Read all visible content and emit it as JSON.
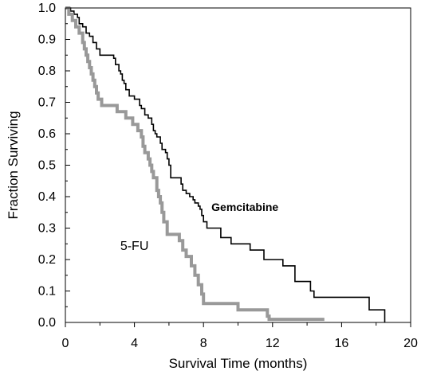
{
  "chart_data": {
    "type": "line",
    "subtype": "kaplan-meier-step",
    "xlabel": "Survival Time (months)",
    "ylabel": "Fraction Surviving",
    "xlim": [
      0,
      20
    ],
    "ylim": [
      0,
      1.0
    ],
    "x_ticks": [
      0,
      4,
      8,
      12,
      16,
      20
    ],
    "x_tick_labels": [
      "0",
      "4",
      "8",
      "12",
      "16",
      "20"
    ],
    "y_ticks": [
      0,
      0.1,
      0.2,
      0.3,
      0.4,
      0.5,
      0.6,
      0.7,
      0.8,
      0.9,
      1.0
    ],
    "y_tick_labels": [
      "0.0",
      "0.1",
      "0.2",
      "0.3",
      "0.4",
      "0.5",
      "0.6",
      "0.7",
      "0.8",
      "0.9",
      "1.0"
    ],
    "grid": false,
    "series": [
      {
        "name": "Gemcitabine",
        "color": "#000000",
        "style": "thin-step",
        "points": [
          [
            0,
            1.0
          ],
          [
            0.3,
            0.99
          ],
          [
            0.5,
            0.98
          ],
          [
            0.7,
            0.97
          ],
          [
            0.8,
            0.95
          ],
          [
            1.0,
            0.94
          ],
          [
            1.2,
            0.92
          ],
          [
            1.4,
            0.91
          ],
          [
            1.6,
            0.89
          ],
          [
            1.8,
            0.87
          ],
          [
            2.0,
            0.85
          ],
          [
            2.8,
            0.84
          ],
          [
            2.9,
            0.82
          ],
          [
            3.1,
            0.8
          ],
          [
            3.2,
            0.79
          ],
          [
            3.3,
            0.77
          ],
          [
            3.4,
            0.76
          ],
          [
            3.5,
            0.74
          ],
          [
            3.7,
            0.72
          ],
          [
            4.0,
            0.71
          ],
          [
            4.3,
            0.69
          ],
          [
            4.4,
            0.68
          ],
          [
            4.6,
            0.66
          ],
          [
            4.8,
            0.65
          ],
          [
            5.0,
            0.63
          ],
          [
            5.1,
            0.61
          ],
          [
            5.2,
            0.6
          ],
          [
            5.3,
            0.59
          ],
          [
            5.5,
            0.57
          ],
          [
            5.6,
            0.55
          ],
          [
            5.8,
            0.54
          ],
          [
            5.9,
            0.52
          ],
          [
            6.0,
            0.5
          ],
          [
            6.1,
            0.46
          ],
          [
            6.7,
            0.44
          ],
          [
            6.8,
            0.42
          ],
          [
            7.0,
            0.41
          ],
          [
            7.2,
            0.4
          ],
          [
            7.4,
            0.39
          ],
          [
            7.5,
            0.38
          ],
          [
            7.7,
            0.37
          ],
          [
            7.8,
            0.36
          ],
          [
            7.9,
            0.34
          ],
          [
            8.0,
            0.32
          ],
          [
            8.2,
            0.3
          ],
          [
            9.0,
            0.27
          ],
          [
            9.6,
            0.25
          ],
          [
            10.7,
            0.23
          ],
          [
            11.5,
            0.2
          ],
          [
            12.6,
            0.18
          ],
          [
            13.3,
            0.13
          ],
          [
            14.2,
            0.1
          ],
          [
            14.4,
            0.08
          ],
          [
            17.6,
            0.04
          ],
          [
            18.5,
            0.0
          ]
        ]
      },
      {
        "name": "5-FU",
        "color": "#999999",
        "style": "thick-step",
        "points": [
          [
            0,
            1.0
          ],
          [
            0.2,
            0.98
          ],
          [
            0.4,
            0.96
          ],
          [
            0.6,
            0.94
          ],
          [
            0.8,
            0.92
          ],
          [
            1.0,
            0.89
          ],
          [
            1.1,
            0.87
          ],
          [
            1.2,
            0.85
          ],
          [
            1.3,
            0.83
          ],
          [
            1.4,
            0.81
          ],
          [
            1.5,
            0.79
          ],
          [
            1.6,
            0.77
          ],
          [
            1.7,
            0.75
          ],
          [
            1.8,
            0.73
          ],
          [
            1.9,
            0.71
          ],
          [
            2.1,
            0.69
          ],
          [
            3.0,
            0.67
          ],
          [
            3.5,
            0.65
          ],
          [
            3.9,
            0.63
          ],
          [
            4.2,
            0.61
          ],
          [
            4.4,
            0.59
          ],
          [
            4.5,
            0.56
          ],
          [
            4.6,
            0.54
          ],
          [
            4.8,
            0.52
          ],
          [
            4.9,
            0.5
          ],
          [
            5.0,
            0.48
          ],
          [
            5.1,
            0.46
          ],
          [
            5.3,
            0.42
          ],
          [
            5.4,
            0.4
          ],
          [
            5.5,
            0.38
          ],
          [
            5.6,
            0.35
          ],
          [
            5.7,
            0.32
          ],
          [
            5.9,
            0.28
          ],
          [
            6.6,
            0.26
          ],
          [
            6.8,
            0.23
          ],
          [
            7.0,
            0.21
          ],
          [
            7.3,
            0.18
          ],
          [
            7.5,
            0.15
          ],
          [
            7.7,
            0.12
          ],
          [
            7.9,
            0.09
          ],
          [
            8.0,
            0.06
          ],
          [
            10.0,
            0.04
          ],
          [
            11.7,
            0.02
          ],
          [
            11.8,
            0.01
          ],
          [
            15.0,
            0.01
          ]
        ]
      }
    ],
    "annotations": [
      {
        "text": "Gemcitabine",
        "x": 10.4,
        "y": 0.355
      },
      {
        "text": "5-FU",
        "x": 4.0,
        "y": 0.23
      }
    ]
  }
}
